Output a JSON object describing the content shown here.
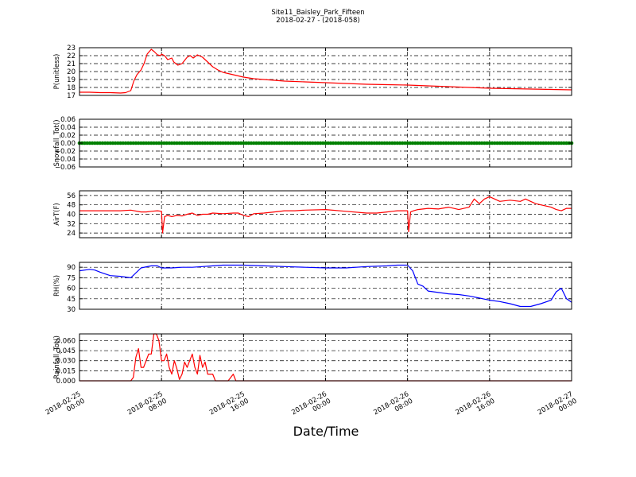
{
  "figure": {
    "title_line1": "Site11_Baisley_Park_Fifteen",
    "title_line2": "2018-02-27 - (2018-058)",
    "xlabel": "Date/Time"
  },
  "chart_data": [
    {
      "type": "line",
      "ylabel": "P(unitless)",
      "ylim": [
        17,
        23
      ],
      "yticks": [
        "17",
        "18",
        "19",
        "20",
        "21",
        "22",
        "23"
      ],
      "xlim": [
        0,
        48
      ],
      "xtick_labels": [
        [
          "2018-02-25",
          "00:00"
        ],
        [
          "2018-02-25",
          "08:00"
        ],
        [
          "2018-02-25",
          "16:00"
        ],
        [
          "2018-02-26",
          "00:00"
        ],
        [
          "2018-02-26",
          "08:00"
        ],
        [
          "2018-02-26",
          "16:00"
        ],
        [
          "2018-02-27",
          "00:00"
        ]
      ],
      "grid": true,
      "color": "#ff0000",
      "x": [
        0,
        1,
        2,
        3,
        4,
        4.5,
        5,
        5.3,
        5.6,
        6,
        6.3,
        6.6,
        7,
        7.3,
        7.6,
        7.9,
        8,
        8.3,
        8.6,
        9,
        9.2,
        9.6,
        10,
        10.5,
        10.8,
        11.1,
        11.5,
        12,
        12.5,
        13,
        13.5,
        14,
        15,
        16,
        17,
        18,
        20,
        22,
        24,
        26,
        28,
        30,
        32,
        34,
        36,
        38,
        40,
        42,
        44,
        46,
        48
      ],
      "y": [
        17.4,
        17.4,
        17.35,
        17.35,
        17.3,
        17.35,
        17.6,
        18.8,
        19.6,
        20.2,
        21.0,
        22.2,
        22.8,
        22.5,
        22.1,
        22.0,
        22.2,
        22.0,
        21.5,
        21.7,
        21.2,
        20.8,
        21.0,
        21.8,
        22.0,
        21.7,
        22.1,
        21.8,
        21.2,
        20.6,
        20.2,
        19.9,
        19.6,
        19.3,
        19.1,
        19.0,
        18.8,
        18.7,
        18.6,
        18.5,
        18.4,
        18.35,
        18.3,
        18.2,
        18.1,
        18.0,
        17.9,
        17.85,
        17.8,
        17.75,
        17.7
      ]
    },
    {
      "type": "scatter",
      "ylabel": "Snowfall_Tot()",
      "ylim": [
        -0.06,
        0.06
      ],
      "yticks": [
        "−0.06",
        "−0.04",
        "−0.02",
        "0.00",
        "0.02",
        "0.04",
        "0.06"
      ],
      "xlim": [
        0,
        48
      ],
      "grid": true,
      "color": "#008000",
      "value_all": 0.0
    },
    {
      "type": "line",
      "ylabel": "AirT(F)",
      "ylim": [
        20,
        60
      ],
      "yticks": [
        "24",
        "32",
        "40",
        "48",
        "56"
      ],
      "ytick_values": [
        24,
        32,
        40,
        48,
        56
      ],
      "xlim": [
        0,
        48
      ],
      "grid": true,
      "color": "#ff0000",
      "x": [
        0,
        2,
        4,
        5,
        6,
        6.5,
        7,
        7.6,
        8,
        8.1,
        8.3,
        8.6,
        9,
        9.5,
        10,
        10.5,
        11,
        11.5,
        12,
        12.5,
        13,
        14,
        15,
        15.5,
        16,
        16.5,
        17,
        18,
        19,
        20,
        21,
        22,
        24,
        26,
        28,
        29,
        30,
        30.5,
        31,
        32,
        32.1,
        32.3,
        32.6,
        33,
        34,
        35,
        36,
        37,
        38,
        38.5,
        39,
        39.5,
        40,
        41,
        42,
        43,
        43.5,
        44,
        44.5,
        45,
        46,
        46.5,
        47,
        47.5,
        48
      ],
      "y": [
        43,
        43,
        43,
        43.5,
        42,
        42,
        42.5,
        43,
        42.5,
        24,
        38,
        39,
        38,
        39,
        38.5,
        40,
        41,
        39,
        40,
        40,
        41,
        40.5,
        41,
        41,
        39,
        38,
        40.5,
        41,
        42,
        43,
        43,
        43.5,
        44,
        42.5,
        41,
        41,
        42,
        42.5,
        43,
        43,
        25,
        42,
        43,
        44,
        45,
        44.5,
        46,
        44,
        46,
        53,
        49,
        53,
        55,
        51,
        52,
        51,
        53,
        51,
        49,
        48,
        46,
        44,
        43,
        45,
        45
      ]
    },
    {
      "type": "line",
      "ylabel": "RH(%)",
      "ylim": [
        30,
        97
      ],
      "yticks": [
        "30",
        "45",
        "60",
        "75",
        "90"
      ],
      "ytick_values": [
        30,
        45,
        60,
        75,
        90
      ],
      "xlim": [
        0,
        48
      ],
      "grid": true,
      "color": "#0000ff",
      "x": [
        0,
        1,
        1.5,
        2,
        3,
        4,
        5,
        6,
        7,
        7.6,
        8,
        9,
        10,
        11,
        12,
        13,
        14,
        16,
        18,
        20,
        22,
        24,
        26,
        28,
        30,
        31,
        32,
        32.5,
        33,
        33.5,
        34,
        35,
        36,
        37,
        38,
        39,
        40,
        41,
        42,
        43,
        44,
        45,
        46,
        46.5,
        47,
        47.5,
        48
      ],
      "y": [
        85,
        87,
        86,
        83,
        78,
        77,
        75,
        89,
        92,
        92,
        89,
        89,
        90,
        90,
        91,
        92,
        93,
        93,
        92,
        91,
        90,
        89,
        89,
        91,
        92,
        93,
        93,
        85,
        66,
        63,
        56,
        54,
        52,
        51,
        49,
        46,
        43,
        41,
        38,
        34,
        34,
        38,
        43,
        55,
        60,
        45,
        40
      ]
    },
    {
      "type": "line",
      "ylabel": "Rainfall_Tot()",
      "ylim": [
        0,
        0.07
      ],
      "yticks": [
        "0.000",
        "0.015",
        "0.030",
        "0.045",
        "0.060"
      ],
      "ytick_values": [
        0,
        0.015,
        0.03,
        0.045,
        0.06
      ],
      "xlim": [
        0,
        48
      ],
      "grid": true,
      "color": "#ff0000",
      "x": [
        0,
        2,
        4,
        5,
        5.25,
        5.5,
        5.75,
        6,
        6.25,
        6.5,
        6.75,
        7,
        7.25,
        7.5,
        7.75,
        8,
        8.25,
        8.5,
        8.75,
        9,
        9.25,
        9.5,
        9.75,
        10,
        10.25,
        10.5,
        10.75,
        11,
        11.25,
        11.5,
        11.75,
        12,
        12.25,
        12.5,
        12.75,
        13,
        13.25,
        13.5,
        13.75,
        14,
        14.5,
        15,
        15.25,
        15.5,
        16,
        18,
        20,
        24,
        28,
        32,
        36,
        40,
        44,
        48
      ],
      "y": [
        0,
        0,
        0,
        0,
        0.005,
        0.035,
        0.048,
        0.02,
        0.02,
        0.03,
        0.04,
        0.04,
        0.07,
        0.07,
        0.06,
        0.03,
        0.03,
        0.04,
        0.02,
        0.01,
        0.03,
        0.018,
        0.002,
        0.01,
        0.028,
        0.02,
        0.03,
        0.04,
        0.02,
        0.01,
        0.038,
        0.02,
        0.028,
        0.01,
        0.01,
        0.01,
        0,
        0,
        0,
        0,
        0,
        0.01,
        0,
        0,
        0,
        0,
        0,
        0,
        0,
        0,
        0,
        0,
        0,
        0
      ]
    }
  ]
}
